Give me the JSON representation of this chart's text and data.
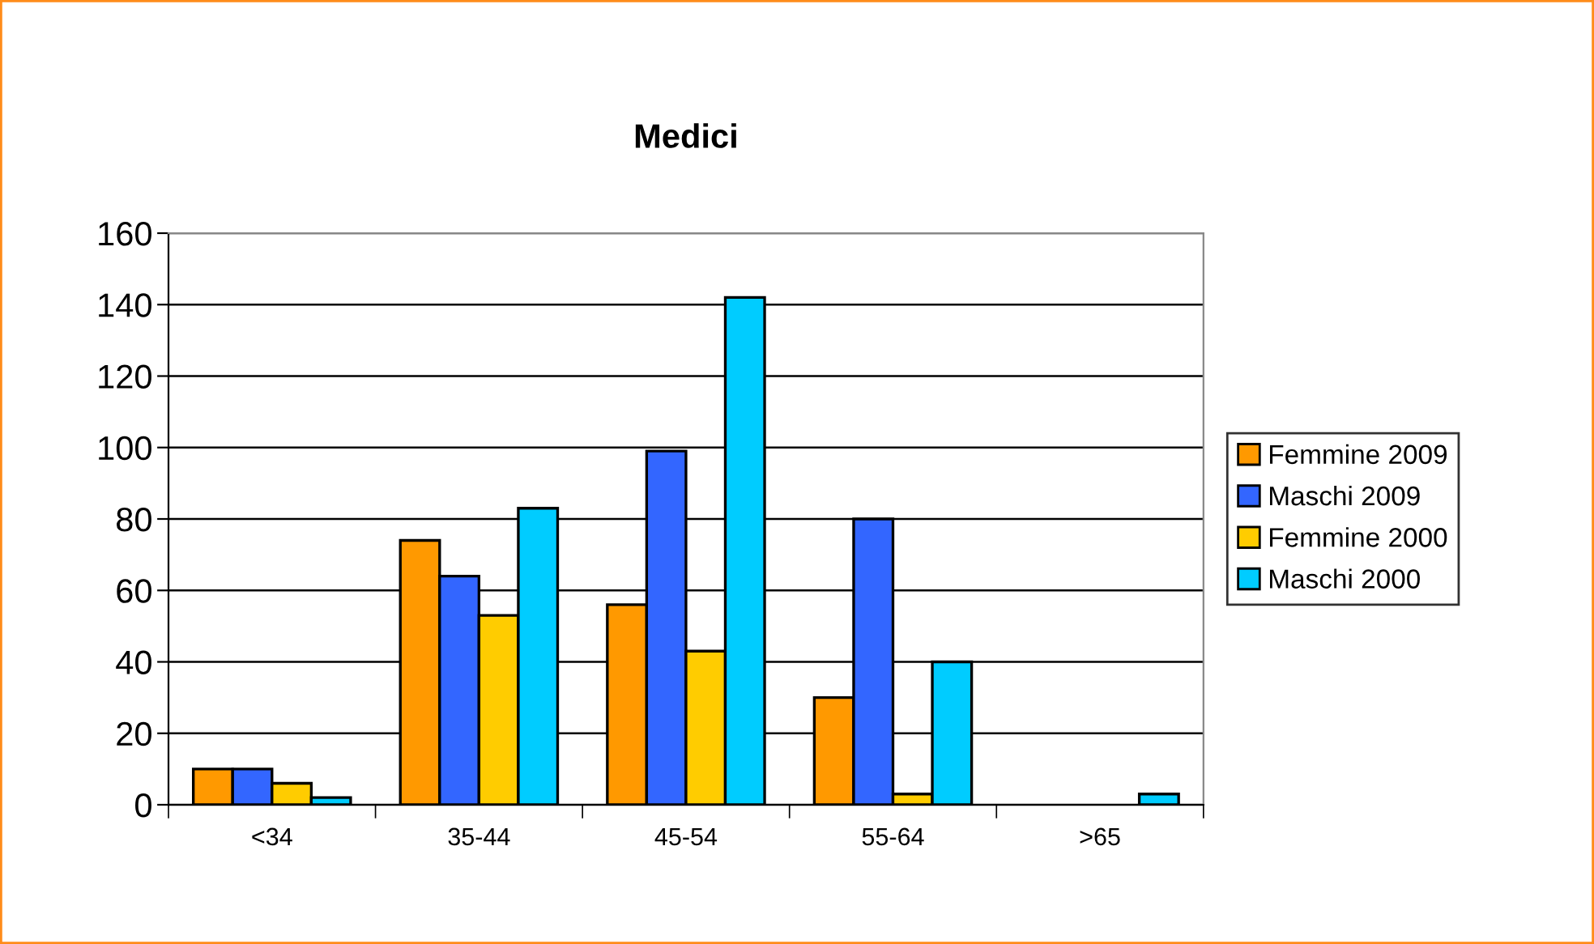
{
  "chart_data": {
    "type": "bar",
    "title": "Medici",
    "categories": [
      "<34",
      "35-44",
      "45-54",
      "55-64",
      ">65"
    ],
    "series": [
      {
        "name": "Femmine 2009",
        "color": "#ff9900",
        "values": [
          10,
          74,
          56,
          30,
          0
        ]
      },
      {
        "name": "Maschi 2009",
        "color": "#3366ff",
        "values": [
          10,
          64,
          99,
          80,
          0
        ]
      },
      {
        "name": "Femmine 2000",
        "color": "#ffcc00",
        "values": [
          6,
          53,
          43,
          3,
          0
        ]
      },
      {
        "name": "Maschi 2000",
        "color": "#00ccff",
        "values": [
          2,
          83,
          142,
          40,
          3
        ]
      }
    ],
    "ylim": [
      0,
      160
    ],
    "yticks": [
      0,
      20,
      40,
      60,
      80,
      100,
      120,
      140,
      160
    ],
    "grid": "y",
    "legend": "right"
  }
}
